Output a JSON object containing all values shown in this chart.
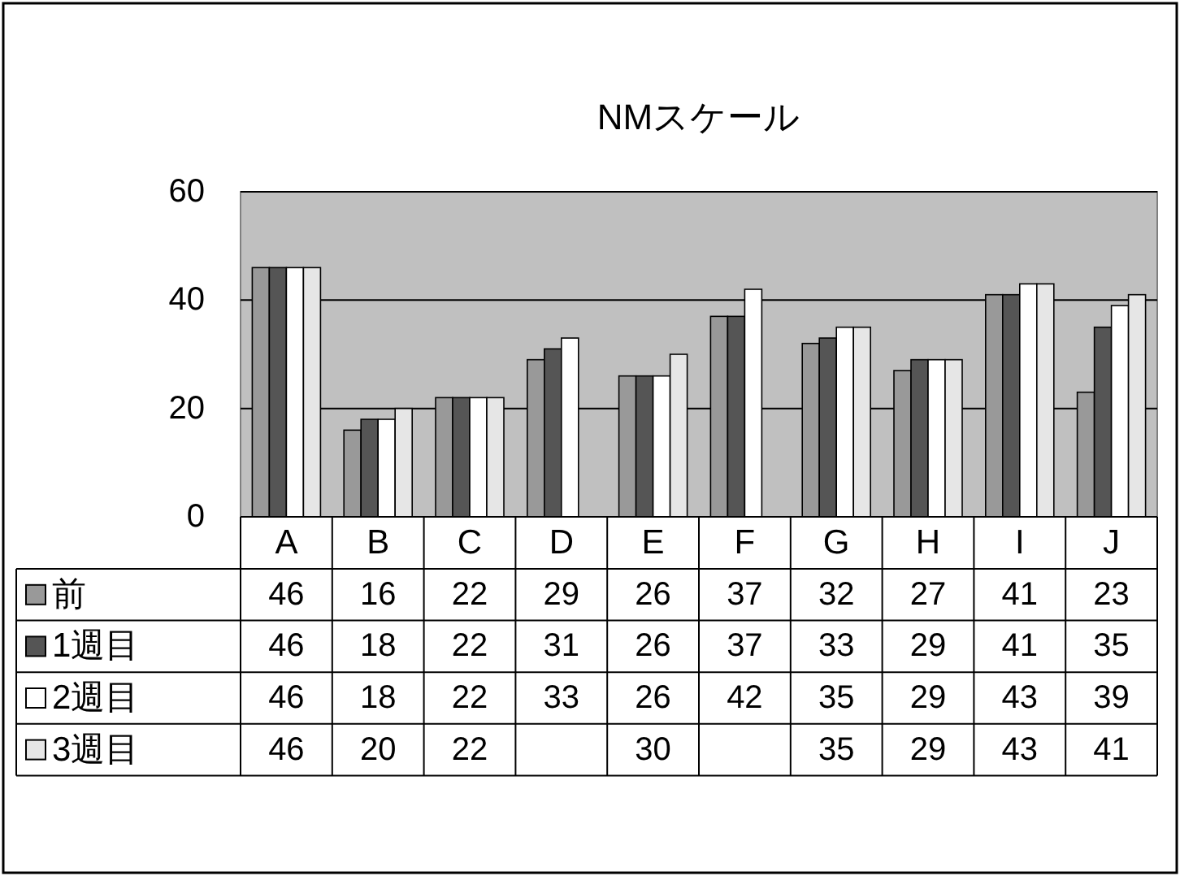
{
  "chart_data": {
    "type": "bar",
    "title": "NMスケール",
    "categories": [
      "A",
      "B",
      "C",
      "D",
      "E",
      "F",
      "G",
      "H",
      "I",
      "J"
    ],
    "series": [
      {
        "name": "前",
        "color": "#999999",
        "values": [
          46,
          16,
          22,
          29,
          26,
          37,
          32,
          27,
          41,
          23
        ]
      },
      {
        "name": "1週目",
        "color": "#555555",
        "values": [
          46,
          18,
          22,
          31,
          26,
          37,
          33,
          29,
          41,
          35
        ]
      },
      {
        "name": "2週目",
        "color": "#ffffff",
        "values": [
          46,
          18,
          22,
          33,
          26,
          42,
          35,
          29,
          43,
          39
        ]
      },
      {
        "name": "3週目",
        "color": "#e6e6e6",
        "values": [
          46,
          20,
          22,
          null,
          30,
          null,
          35,
          29,
          43,
          41
        ]
      }
    ],
    "ylim": [
      0,
      60
    ],
    "yticks": [
      0,
      20,
      40,
      60
    ],
    "grid": "y",
    "legend": "bottom",
    "data_labels": true
  }
}
